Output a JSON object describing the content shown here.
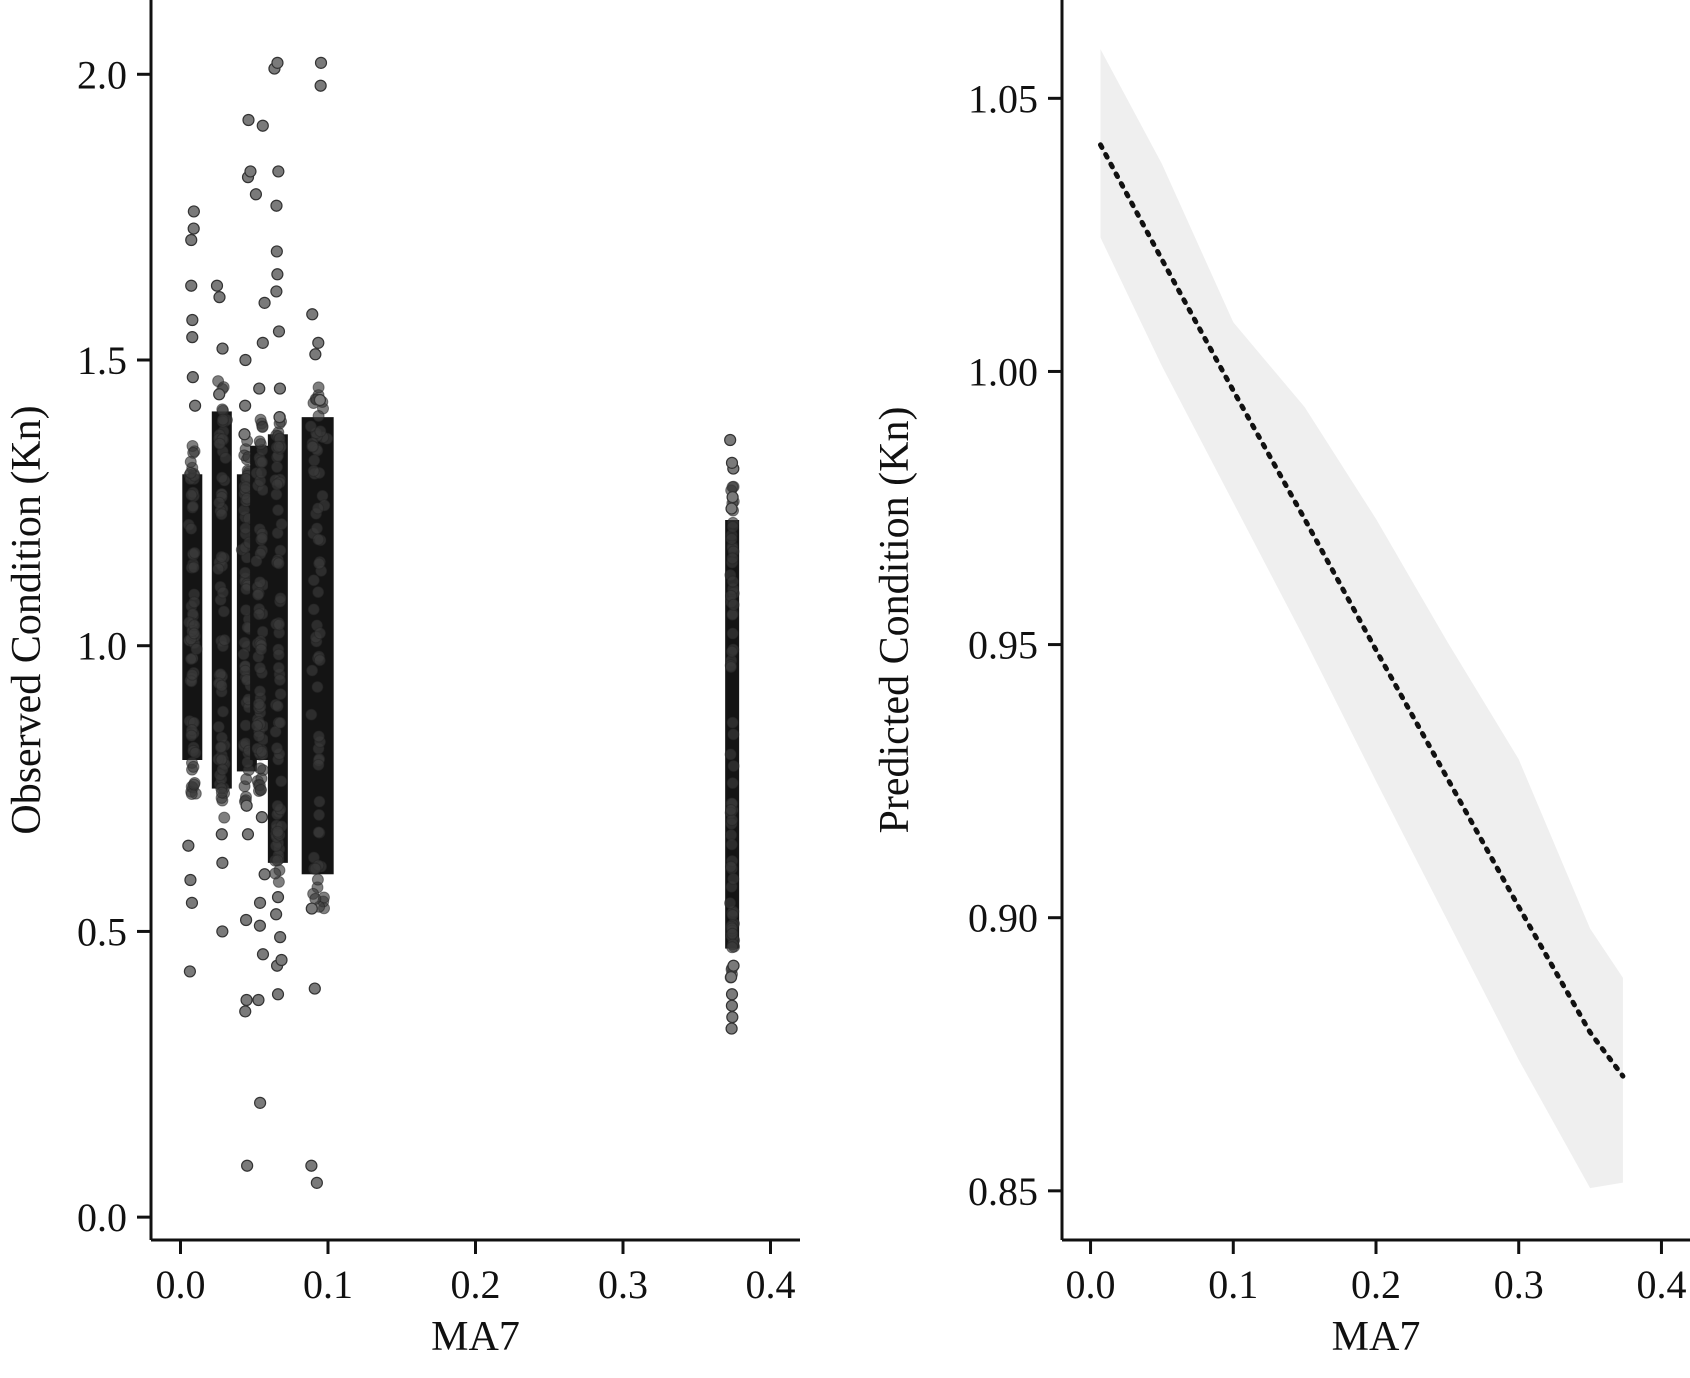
{
  "chart_data": [
    {
      "type": "scatter",
      "title": "",
      "xlabel": "MA7",
      "ylabel": "Observed Condition (Kn)",
      "xlim": [
        -0.02,
        0.42
      ],
      "ylim": [
        -0.04,
        2.13
      ],
      "xticks": [
        "0.0",
        "0.1",
        "0.2",
        "0.3",
        "0.4"
      ],
      "yticks": [
        "0.0",
        "0.5",
        "1.0",
        "1.5",
        "2.0"
      ],
      "grid": false,
      "point_color": "#3a3a3a",
      "clusters": [
        {
          "x": 0.008,
          "core": [
            0.8,
            1.3
          ],
          "outliers": [
            0.43,
            0.55,
            0.59,
            0.65,
            1.42,
            1.47,
            1.54,
            1.57,
            1.63,
            1.71,
            1.73,
            1.76
          ]
        },
        {
          "x": 0.028,
          "core": [
            0.75,
            1.41
          ],
          "outliers": [
            0.5,
            0.62,
            0.67,
            1.44,
            1.52,
            1.61,
            1.63
          ]
        },
        {
          "x": 0.045,
          "core": [
            0.78,
            1.3
          ],
          "outliers": [
            0.09,
            0.36,
            0.38,
            0.52,
            0.67,
            0.72,
            1.37,
            1.42,
            1.5,
            1.82,
            1.83,
            1.92
          ]
        },
        {
          "x": 0.054,
          "core": [
            0.8,
            1.35
          ],
          "outliers": [
            0.2,
            0.38,
            0.46,
            0.51,
            0.55,
            0.6,
            0.7,
            1.45,
            1.53,
            1.6,
            1.79,
            1.91
          ]
        },
        {
          "x": 0.066,
          "core": [
            0.62,
            1.37
          ],
          "outliers": [
            0.39,
            0.44,
            0.45,
            0.49,
            0.53,
            0.56,
            1.4,
            1.45,
            1.55,
            1.62,
            1.65,
            1.69,
            1.77,
            1.83,
            2.01,
            2.02
          ]
        },
        {
          "x": 0.093,
          "core": [
            0.6,
            1.4
          ],
          "outliers": [
            0.06,
            0.09,
            0.4,
            0.54,
            1.43,
            1.51,
            1.53,
            1.58,
            1.98,
            2.02
          ]
        },
        {
          "x": 0.374,
          "core": [
            0.47,
            1.22
          ],
          "outliers": [
            0.33,
            0.35,
            0.37,
            0.39,
            0.42,
            0.44,
            1.24,
            1.26,
            1.31,
            1.32,
            1.36
          ]
        }
      ]
    },
    {
      "type": "line",
      "title": "",
      "xlabel": "MA7",
      "ylabel": "Predicted Condition (Kn)",
      "xlim": [
        -0.02,
        0.42
      ],
      "ylim": [
        0.841,
        1.068
      ],
      "xticks": [
        "0.0",
        "0.1",
        "0.2",
        "0.3",
        "0.4"
      ],
      "yticks": [
        "0.85",
        "0.90",
        "0.95",
        "1.00",
        "1.05"
      ],
      "grid": false,
      "line_style": "dotted",
      "band_color": "#efefef",
      "line_color": "#111111",
      "series": [
        {
          "x": [
            0.007,
            0.05,
            0.1,
            0.15,
            0.2,
            0.25,
            0.3,
            0.35,
            0.373
          ],
          "fit": [
            1.0415,
            1.0205,
            0.9965,
            0.973,
            0.949,
            0.9255,
            0.902,
            0.879,
            0.871
          ],
          "lower": [
            1.0245,
            1.001,
            0.976,
            0.951,
            0.925,
            0.8995,
            0.874,
            0.8505,
            0.8515
          ],
          "upper": [
            1.059,
            1.038,
            1.009,
            0.9935,
            0.973,
            0.9505,
            0.929,
            0.898,
            0.889
          ]
        }
      ]
    }
  ]
}
